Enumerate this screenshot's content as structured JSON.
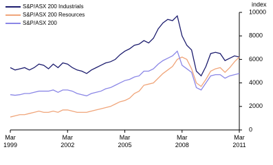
{
  "chart_data": {
    "type": "line",
    "y_label": "index",
    "x": [
      "Mar 1999",
      "Jun 1999",
      "Sep 1999",
      "Dec 1999",
      "Mar 2000",
      "Jun 2000",
      "Sep 2000",
      "Dec 2000",
      "Mar 2001",
      "Jun 2001",
      "Sep 2001",
      "Dec 2001",
      "Mar 2002",
      "Jun 2002",
      "Sep 2002",
      "Dec 2002",
      "Mar 2003",
      "Jun 2003",
      "Sep 2003",
      "Dec 2003",
      "Mar 2004",
      "Jun 2004",
      "Sep 2004",
      "Dec 2004",
      "Mar 2005",
      "Jun 2005",
      "Sep 2005",
      "Dec 2005",
      "Mar 2006",
      "Jun 2006",
      "Sep 2006",
      "Dec 2006",
      "Mar 2007",
      "Jun 2007",
      "Sep 2007",
      "Dec 2007",
      "Mar 2008",
      "Jun 2008",
      "Sep 2008",
      "Dec 2008",
      "Mar 2009",
      "Jun 2009",
      "Sep 2009",
      "Dec 2009",
      "Mar 2010",
      "Jun 2010",
      "Sep 2010",
      "Dec 2010",
      "Mar 2011"
    ],
    "xticks": [
      "Mar 1999",
      "Mar 2002",
      "Mar 2005",
      "Mar 2008",
      "Mar 2011"
    ],
    "series": [
      {
        "name": "S&P/ASX 200 Industrials",
        "color": "#1c1c6e",
        "values": [
          5300,
          5100,
          5200,
          5300,
          5100,
          5300,
          5600,
          5500,
          5200,
          5600,
          5300,
          5700,
          5600,
          5300,
          5100,
          5000,
          4800,
          5100,
          5300,
          5500,
          5700,
          5800,
          6000,
          6400,
          6700,
          6900,
          7200,
          7300,
          7600,
          7400,
          7800,
          8600,
          9100,
          9400,
          9300,
          9700,
          8000,
          7200,
          6800,
          5000,
          4600,
          5400,
          6500,
          6600,
          6500,
          5900,
          6100,
          6300,
          6200
        ]
      },
      {
        "name": "S&P/ASX 200 Resources",
        "color": "#f0a57a",
        "values": [
          1100,
          1200,
          1300,
          1300,
          1400,
          1500,
          1600,
          1500,
          1500,
          1600,
          1500,
          1700,
          1700,
          1600,
          1500,
          1500,
          1500,
          1600,
          1700,
          1800,
          1900,
          2000,
          2200,
          2400,
          2500,
          2700,
          3100,
          3300,
          3800,
          3900,
          4000,
          4400,
          4800,
          5100,
          5400,
          6000,
          6200,
          6000,
          5200,
          4000,
          3700,
          4300,
          5000,
          5200,
          5300,
          4900,
          5300,
          5800,
          6200
        ]
      },
      {
        "name": "S&P/ASX 200",
        "color": "#8a86e6",
        "values": [
          3000,
          2950,
          3000,
          3100,
          3100,
          3200,
          3300,
          3300,
          3300,
          3400,
          3200,
          3400,
          3400,
          3300,
          3100,
          3000,
          2900,
          3100,
          3200,
          3300,
          3500,
          3600,
          3800,
          4000,
          4200,
          4300,
          4500,
          4600,
          5000,
          5000,
          5200,
          5600,
          5900,
          6100,
          6300,
          6700,
          5500,
          5200,
          4900,
          3600,
          3400,
          4000,
          4600,
          4700,
          4700,
          4400,
          4600,
          4700,
          4800
        ]
      }
    ],
    "ylim": [
      0,
      10000
    ],
    "yticks": [
      0,
      2000,
      4000,
      6000,
      8000,
      10000
    ],
    "legend": "upper left"
  }
}
